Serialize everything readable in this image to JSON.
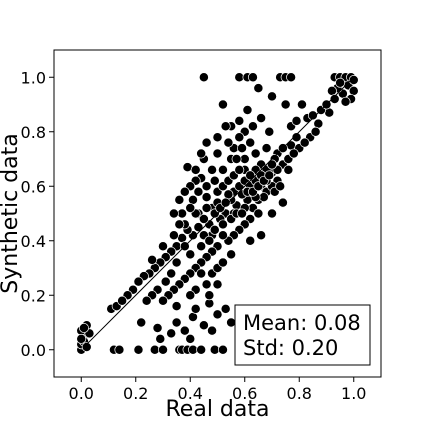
{
  "chart_data": {
    "type": "scatter",
    "title": "",
    "xlabel": "Real data",
    "ylabel": "Synthetic data",
    "xlim": [
      -0.1,
      1.1
    ],
    "ylim": [
      -0.1,
      1.1
    ],
    "x_ticks": [
      "0.0",
      "0.2",
      "0.4",
      "0.6",
      "0.8",
      "1.0"
    ],
    "y_ticks": [
      "0.0",
      "0.2",
      "0.4",
      "0.6",
      "0.8",
      "1.0"
    ],
    "grid": false,
    "reference_line": {
      "from": [
        0.02,
        0.02
      ],
      "to": [
        1.0,
        1.0
      ]
    },
    "annotation": {
      "mean_label": "Mean: 0.08",
      "std_label": "Std: 0.20",
      "position": "bottom-right"
    },
    "marker_color": "#000000",
    "marker_edge": "#ffffff",
    "series": [
      {
        "points": [
          [
            0.0,
            0.0
          ],
          [
            0.0,
            0.02
          ],
          [
            0.01,
            0.05
          ],
          [
            0.0,
            0.07
          ],
          [
            0.02,
            0.09
          ],
          [
            0.01,
            0.03
          ],
          [
            0.03,
            0.06
          ],
          [
            0.0,
            0.04
          ],
          [
            0.02,
            0.01
          ],
          [
            0.01,
            0.08
          ],
          [
            0.12,
            0.0
          ],
          [
            0.14,
            0.0
          ],
          [
            0.11,
            0.15
          ],
          [
            0.13,
            0.16
          ],
          [
            0.21,
            0.0
          ],
          [
            0.27,
            0.0
          ],
          [
            0.3,
            0.0
          ],
          [
            0.36,
            0.0
          ],
          [
            0.37,
            0.0
          ],
          [
            0.39,
            0.0
          ],
          [
            0.41,
            0.0
          ],
          [
            0.44,
            0.0
          ],
          [
            0.49,
            0.0
          ],
          [
            0.52,
            0.0
          ],
          [
            0.22,
            0.1
          ],
          [
            0.28,
            0.08
          ],
          [
            0.33,
            0.06
          ],
          [
            0.35,
            0.1
          ],
          [
            0.38,
            0.07
          ],
          [
            0.41,
            0.12
          ],
          [
            0.45,
            0.09
          ],
          [
            0.48,
            0.07
          ],
          [
            0.5,
            0.13
          ],
          [
            0.55,
            0.1
          ],
          [
            0.35,
            0.16
          ],
          [
            0.42,
            0.15
          ],
          [
            0.47,
            0.17
          ],
          [
            0.53,
            0.15
          ],
          [
            0.29,
            0.04
          ],
          [
            0.4,
            0.04
          ],
          [
            0.45,
            1.0
          ],
          [
            0.58,
            1.0
          ],
          [
            0.61,
            1.0
          ],
          [
            0.63,
            1.0
          ],
          [
            0.73,
            1.0
          ],
          [
            0.75,
            1.0
          ],
          [
            0.77,
            1.0
          ],
          [
            0.93,
            1.0
          ],
          [
            0.95,
            1.0
          ],
          [
            0.97,
            1.0
          ],
          [
            0.99,
            1.0
          ],
          [
            0.98,
            0.97
          ],
          [
            1.0,
            0.95
          ],
          [
            0.96,
            0.94
          ],
          [
            0.99,
            0.92
          ],
          [
            0.94,
            0.96
          ],
          [
            0.97,
            0.91
          ],
          [
            1.0,
            0.99
          ],
          [
            0.95,
            0.98
          ],
          [
            0.92,
            0.95
          ],
          [
            0.91,
            0.87
          ],
          [
            0.87,
            0.83
          ],
          [
            0.83,
            0.85
          ],
          [
            0.79,
            0.78
          ],
          [
            0.81,
            0.9
          ],
          [
            0.77,
            0.75
          ],
          [
            0.75,
            0.9
          ],
          [
            0.7,
            0.93
          ],
          [
            0.65,
            0.96
          ],
          [
            0.66,
            0.85
          ],
          [
            0.63,
            0.82
          ],
          [
            0.61,
            0.88
          ],
          [
            0.6,
            0.8
          ],
          [
            0.58,
            0.84
          ],
          [
            0.55,
            0.82
          ],
          [
            0.52,
            0.9
          ],
          [
            0.69,
            0.8
          ],
          [
            0.72,
            0.72
          ],
          [
            0.74,
            0.68
          ],
          [
            0.76,
            0.66
          ],
          [
            0.71,
            0.7
          ],
          [
            0.68,
            0.74
          ],
          [
            0.7,
            0.65
          ],
          [
            0.66,
            0.68
          ],
          [
            0.64,
            0.72
          ],
          [
            0.62,
            0.76
          ],
          [
            0.6,
            0.7
          ],
          [
            0.58,
            0.78
          ],
          [
            0.56,
            0.74
          ],
          [
            0.54,
            0.76
          ],
          [
            0.5,
            0.72
          ],
          [
            0.48,
            0.66
          ],
          [
            0.45,
            0.7
          ],
          [
            0.44,
            0.63
          ],
          [
            0.42,
            0.62
          ],
          [
            0.4,
            0.6
          ],
          [
            0.39,
            0.67
          ],
          [
            0.41,
            0.55
          ],
          [
            0.43,
            0.5
          ],
          [
            0.46,
            0.56
          ],
          [
            0.48,
            0.52
          ],
          [
            0.5,
            0.58
          ],
          [
            0.52,
            0.6
          ],
          [
            0.54,
            0.62
          ],
          [
            0.56,
            0.58
          ],
          [
            0.58,
            0.6
          ],
          [
            0.6,
            0.62
          ],
          [
            0.62,
            0.6
          ],
          [
            0.64,
            0.62
          ],
          [
            0.66,
            0.6
          ],
          [
            0.68,
            0.58
          ],
          [
            0.65,
            0.55
          ],
          [
            0.63,
            0.52
          ],
          [
            0.61,
            0.55
          ],
          [
            0.59,
            0.57
          ],
          [
            0.57,
            0.53
          ],
          [
            0.55,
            0.55
          ],
          [
            0.53,
            0.5
          ],
          [
            0.51,
            0.48
          ],
          [
            0.49,
            0.5
          ],
          [
            0.47,
            0.46
          ],
          [
            0.45,
            0.48
          ],
          [
            0.43,
            0.45
          ],
          [
            0.41,
            0.42
          ],
          [
            0.39,
            0.44
          ],
          [
            0.37,
            0.41
          ],
          [
            0.35,
            0.38
          ],
          [
            0.33,
            0.36
          ],
          [
            0.31,
            0.34
          ],
          [
            0.29,
            0.32
          ],
          [
            0.27,
            0.3
          ],
          [
            0.25,
            0.28
          ],
          [
            0.23,
            0.27
          ],
          [
            0.21,
            0.25
          ],
          [
            0.19,
            0.22
          ],
          [
            0.17,
            0.2
          ],
          [
            0.15,
            0.18
          ],
          [
            0.26,
            0.33
          ],
          [
            0.3,
            0.38
          ],
          [
            0.34,
            0.42
          ],
          [
            0.38,
            0.46
          ],
          [
            0.42,
            0.5
          ],
          [
            0.46,
            0.52
          ],
          [
            0.5,
            0.54
          ],
          [
            0.54,
            0.57
          ],
          [
            0.56,
            0.64
          ],
          [
            0.6,
            0.66
          ],
          [
            0.64,
            0.66
          ],
          [
            0.68,
            0.66
          ],
          [
            0.72,
            0.62
          ],
          [
            0.7,
            0.6
          ],
          [
            0.67,
            0.56
          ],
          [
            0.65,
            0.5
          ],
          [
            0.62,
            0.48
          ],
          [
            0.6,
            0.46
          ],
          [
            0.58,
            0.44
          ],
          [
            0.56,
            0.42
          ],
          [
            0.54,
            0.4
          ],
          [
            0.52,
            0.42
          ],
          [
            0.5,
            0.38
          ],
          [
            0.48,
            0.36
          ],
          [
            0.46,
            0.34
          ],
          [
            0.44,
            0.32
          ],
          [
            0.42,
            0.3
          ],
          [
            0.4,
            0.28
          ],
          [
            0.38,
            0.26
          ],
          [
            0.36,
            0.24
          ],
          [
            0.34,
            0.22
          ],
          [
            0.32,
            0.2
          ],
          [
            0.3,
            0.18
          ],
          [
            0.4,
            0.35
          ],
          [
            0.44,
            0.38
          ],
          [
            0.48,
            0.42
          ],
          [
            0.52,
            0.46
          ],
          [
            0.56,
            0.5
          ],
          [
            0.6,
            0.52
          ],
          [
            0.64,
            0.56
          ],
          [
            0.68,
            0.62
          ],
          [
            0.72,
            0.66
          ],
          [
            0.76,
            0.7
          ],
          [
            0.8,
            0.74
          ],
          [
            0.84,
            0.78
          ],
          [
            0.86,
            0.8
          ],
          [
            0.82,
            0.76
          ],
          [
            0.78,
            0.72
          ],
          [
            0.74,
            0.74
          ],
          [
            0.7,
            0.68
          ],
          [
            0.66,
            0.64
          ],
          [
            0.62,
            0.64
          ],
          [
            0.58,
            0.66
          ],
          [
            0.55,
            0.7
          ],
          [
            0.52,
            0.66
          ],
          [
            0.49,
            0.62
          ],
          [
            0.46,
            0.6
          ],
          [
            0.43,
            0.58
          ],
          [
            0.4,
            0.52
          ],
          [
            0.37,
            0.5
          ],
          [
            0.36,
            0.46
          ],
          [
            0.38,
            0.38
          ],
          [
            0.35,
            0.32
          ],
          [
            0.33,
            0.28
          ],
          [
            0.31,
            0.25
          ],
          [
            0.28,
            0.22
          ],
          [
            0.26,
            0.2
          ],
          [
            0.24,
            0.18
          ],
          [
            0.45,
            0.42
          ],
          [
            0.47,
            0.4
          ],
          [
            0.49,
            0.44
          ],
          [
            0.51,
            0.52
          ],
          [
            0.53,
            0.54
          ],
          [
            0.55,
            0.48
          ],
          [
            0.57,
            0.5
          ],
          [
            0.59,
            0.5
          ],
          [
            0.61,
            0.58
          ],
          [
            0.63,
            0.58
          ],
          [
            0.65,
            0.6
          ],
          [
            0.67,
            0.62
          ],
          [
            0.69,
            0.64
          ],
          [
            0.71,
            0.58
          ],
          [
            0.73,
            0.6
          ],
          [
            0.44,
            0.28
          ],
          [
            0.42,
            0.22
          ],
          [
            0.4,
            0.2
          ],
          [
            0.46,
            0.24
          ],
          [
            0.48,
            0.28
          ],
          [
            0.5,
            0.3
          ],
          [
            0.52,
            0.32
          ],
          [
            0.5,
            0.24
          ],
          [
            0.47,
            0.2
          ],
          [
            0.55,
            0.35
          ],
          [
            0.36,
            0.55
          ],
          [
            0.34,
            0.5
          ],
          [
            0.38,
            0.58
          ],
          [
            0.42,
            0.66
          ],
          [
            0.44,
            0.72
          ],
          [
            0.46,
            0.76
          ],
          [
            0.5,
            0.78
          ],
          [
            0.53,
            0.82
          ],
          [
            0.57,
            0.7
          ],
          [
            0.59,
            0.74
          ],
          [
            0.77,
            0.82
          ],
          [
            0.79,
            0.84
          ],
          [
            0.85,
            0.86
          ],
          [
            0.88,
            0.88
          ],
          [
            0.9,
            0.9
          ],
          [
            0.93,
            0.92
          ],
          [
            0.62,
            0.4
          ],
          [
            0.66,
            0.42
          ],
          [
            0.7,
            0.5
          ],
          [
            0.74,
            0.54
          ]
        ]
      }
    ]
  }
}
